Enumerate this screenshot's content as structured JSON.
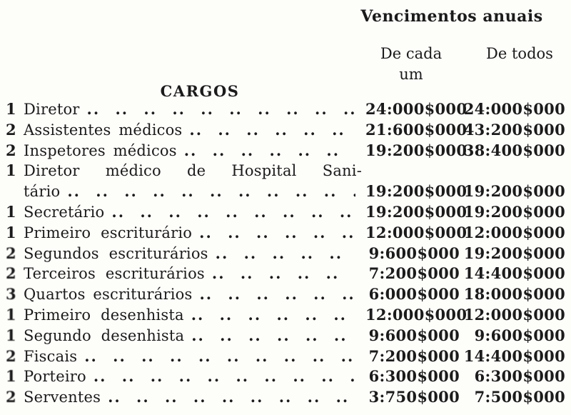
{
  "document": {
    "title": "Vencimentos anuais",
    "columns": {
      "each_label_line1": "De cada",
      "each_label_line2": "um",
      "total_label": "De todos"
    },
    "cargos_header": "CARGOS",
    "leader_unit": "..",
    "rows": [
      {
        "qty": "1",
        "label": "Diretor",
        "each": "24:000$000",
        "total": "24:000$000"
      },
      {
        "qty": "2",
        "label": "Assistentes médicos",
        "each": "21:600$000",
        "total": "43:200$000"
      },
      {
        "qty": "2",
        "label": "Inspetores médicos",
        "each": "19:200$000",
        "total": "38:400$000"
      },
      {
        "qty": "1",
        "label": "Diretor médico de Hospital Sani-",
        "label2": "tário",
        "each": "19:200$000",
        "total": "19:200$000"
      },
      {
        "qty": "1",
        "label": "Secretário",
        "each": "19:200$000",
        "total": "19:200$000"
      },
      {
        "qty": "1",
        "label": "Primeiro escriturário",
        "each": "12:000$000",
        "total": "12:000$000"
      },
      {
        "qty": "2",
        "label": "Segundos escriturários",
        "each": "9:600$000",
        "total": "19:200$000"
      },
      {
        "qty": "2",
        "label": "Terceiros escriturários",
        "each": "7:200$000",
        "total": "14:400$000"
      },
      {
        "qty": "3",
        "label": "Quartos escriturários",
        "each": "6:000$000",
        "total": "18:000$000"
      },
      {
        "qty": "1",
        "label": "Primeiro desenhista",
        "each": "12:000$000",
        "total": "12:000$000"
      },
      {
        "qty": "1",
        "label": "Segundo desenhista",
        "each": "9:600$000",
        "total": "9:600$000"
      },
      {
        "qty": "2",
        "label": "Fiscais",
        "each": "7:200$000",
        "total": "14:400$000"
      },
      {
        "qty": "1",
        "label": "Porteiro",
        "each": "6:300$000",
        "total": "6:300$000"
      },
      {
        "qty": "2",
        "label": "Serventes",
        "each": "3:750$000",
        "total": "7:500$000"
      }
    ]
  }
}
